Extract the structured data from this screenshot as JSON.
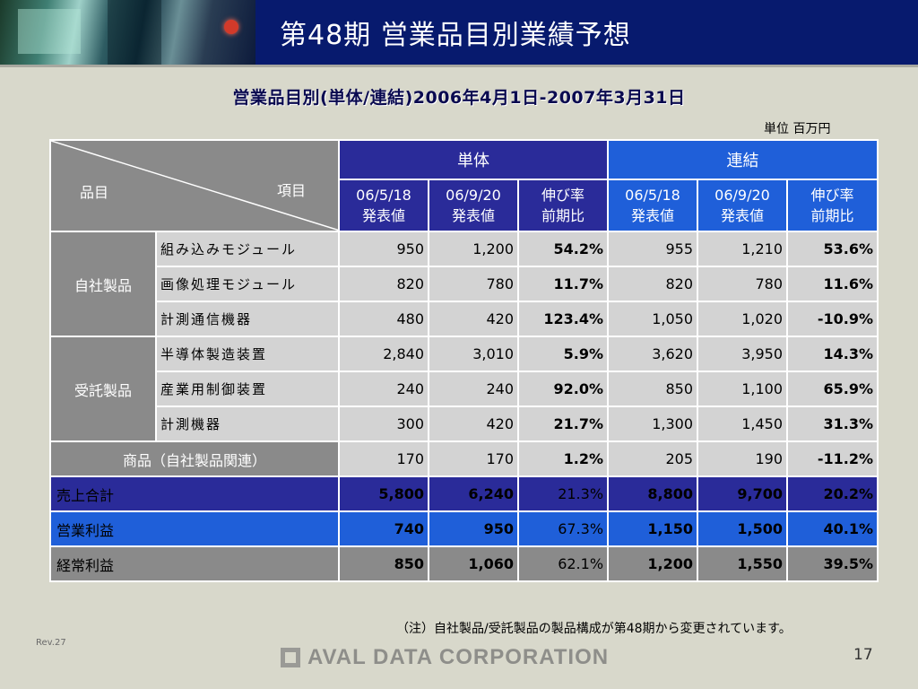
{
  "header": {
    "title": "第48期 営業品目別業績予想"
  },
  "subtitle": "営業品目別(単体/連結)2006年4月1日-2007年3月31日",
  "unit": "単位 百万円",
  "table": {
    "corner_left": "品目",
    "corner_right": "項目",
    "group_headers": {
      "tantai": "単体",
      "renketsu": "連結"
    },
    "sub_headers": {
      "col1": [
        "06/5/18",
        "発表値"
      ],
      "col2": [
        "06/9/20",
        "発表値"
      ],
      "col3": [
        "伸び率",
        "前期比"
      ],
      "col4": [
        "06/5/18",
        "発表値"
      ],
      "col5": [
        "06/9/20",
        "発表値"
      ],
      "col6": [
        "伸び率",
        "前期比"
      ]
    },
    "groups": [
      {
        "label": "自社製品",
        "rows": [
          {
            "item": "組み込みモジュール",
            "v": [
              "950",
              "1,200",
              "54.2%",
              "955",
              "1,210",
              "53.6%"
            ]
          },
          {
            "item": "画像処理モジュール",
            "v": [
              "820",
              "780",
              "11.7%",
              "820",
              "780",
              "11.6%"
            ]
          },
          {
            "item": "計測通信機器",
            "v": [
              "480",
              "420",
              "123.4%",
              "1,050",
              "1,020",
              "-10.9%"
            ]
          }
        ]
      },
      {
        "label": "受託製品",
        "rows": [
          {
            "item": "半導体製造装置",
            "v": [
              "2,840",
              "3,010",
              "5.9%",
              "3,620",
              "3,950",
              "14.3%"
            ]
          },
          {
            "item": "産業用制御装置",
            "v": [
              "240",
              "240",
              "92.0%",
              "850",
              "1,100",
              "65.9%"
            ]
          },
          {
            "item": "計測機器",
            "v": [
              "300",
              "420",
              "21.7%",
              "1,300",
              "1,450",
              "31.3%"
            ]
          }
        ]
      }
    ],
    "merchandise": {
      "label": "商品（自社製品関連）",
      "v": [
        "170",
        "170",
        "1.2%",
        "205",
        "190",
        "-11.2%"
      ]
    },
    "totals": [
      {
        "label": "売上合計",
        "v": [
          "5,800",
          "6,240",
          "21.3%",
          "8,800",
          "9,700",
          "20.2%"
        ]
      },
      {
        "label": "営業利益",
        "v": [
          "740",
          "950",
          "67.3%",
          "1,150",
          "1,500",
          "40.1%"
        ]
      },
      {
        "label": "経常利益",
        "v": [
          "850",
          "1,060",
          "62.1%",
          "1,200",
          "1,550",
          "39.5%"
        ]
      }
    ]
  },
  "note": "（注）自社製品/受託製品の製品構成が第48期から変更されています。",
  "footer": {
    "rev": "Rev.27",
    "logo": "AVAL DATA CORPORATION",
    "page": "17"
  },
  "colors": {
    "navy": "#2a2b99",
    "blue": "#1f5fd9",
    "gray": "#8a8a8a",
    "light": "#d3d3d3",
    "background": "#d8d8cb"
  }
}
